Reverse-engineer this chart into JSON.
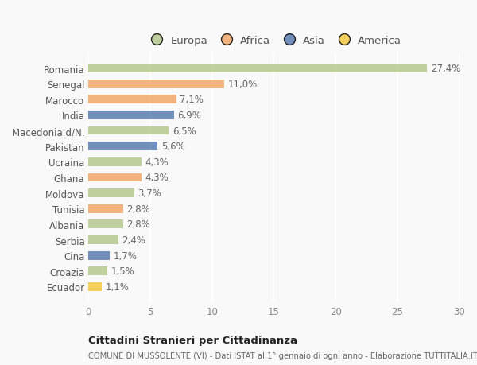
{
  "categories": [
    "Romania",
    "Senegal",
    "Marocco",
    "India",
    "Macedonia d/N.",
    "Pakistan",
    "Ucraina",
    "Ghana",
    "Moldova",
    "Tunisia",
    "Albania",
    "Serbia",
    "Cina",
    "Croazia",
    "Ecuador"
  ],
  "values": [
    27.4,
    11.0,
    7.1,
    6.9,
    6.5,
    5.6,
    4.3,
    4.3,
    3.7,
    2.8,
    2.8,
    2.4,
    1.7,
    1.5,
    1.1
  ],
  "labels": [
    "27,4%",
    "11,0%",
    "7,1%",
    "6,9%",
    "6,5%",
    "5,6%",
    "4,3%",
    "4,3%",
    "3,7%",
    "2,8%",
    "2,8%",
    "2,4%",
    "1,7%",
    "1,5%",
    "1,1%"
  ],
  "continents": [
    "Europa",
    "Africa",
    "Africa",
    "Asia",
    "Europa",
    "Asia",
    "Europa",
    "Africa",
    "Europa",
    "Africa",
    "Europa",
    "Europa",
    "Asia",
    "Europa",
    "America"
  ],
  "colors": {
    "Europa": "#b5c98e",
    "Africa": "#f0a868",
    "Asia": "#5b7db1",
    "America": "#f5c842"
  },
  "xlim": [
    0,
    30
  ],
  "xticks": [
    0,
    5,
    10,
    15,
    20,
    25,
    30
  ],
  "background_color": "#f9f9f9",
  "title": "Cittadini Stranieri per Cittadinanza",
  "subtitle": "COMUNE DI MUSSOLENTE (VI) - Dati ISTAT al 1° gennaio di ogni anno - Elaborazione TUTTITALIA.IT",
  "bar_height": 0.55,
  "grid_color": "#ffffff",
  "label_fontsize": 8.5,
  "tick_fontsize": 8.5,
  "legend_order": [
    "Europa",
    "Africa",
    "Asia",
    "America"
  ]
}
